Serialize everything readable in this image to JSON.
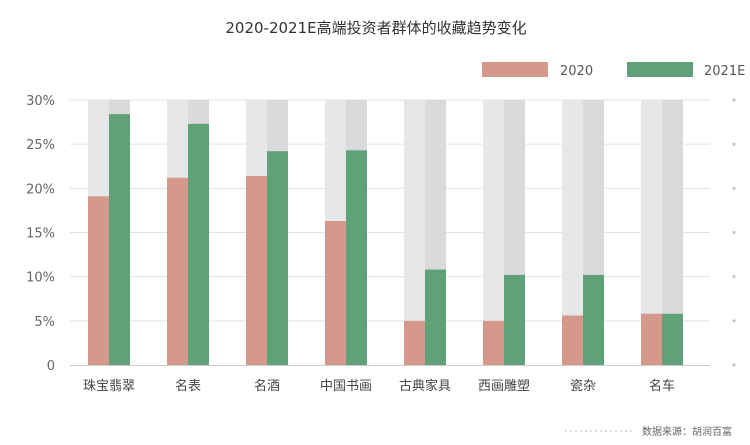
{
  "chart_data": {
    "type": "bar",
    "title": "2020-2021E高端投资者群体的收藏趋势变化",
    "categories": [
      "珠宝翡翠",
      "名表",
      "名酒",
      "中国书画",
      "古典家具",
      "西画雕塑",
      "瓷杂",
      "名车"
    ],
    "series": [
      {
        "name": "2020",
        "color": "#d4998a",
        "values": [
          19.1,
          21.2,
          21.4,
          16.3,
          5.0,
          5.0,
          5.6,
          5.8
        ]
      },
      {
        "name": "2021E",
        "color": "#5fa277",
        "values": [
          28.4,
          27.3,
          24.2,
          24.3,
          10.8,
          10.2,
          10.2,
          5.8
        ]
      }
    ],
    "ylim": [
      0,
      30
    ],
    "yticks": [
      "0",
      "5%",
      "10%",
      "15%",
      "20%",
      "25%",
      "30%"
    ],
    "ytick_values": [
      0,
      5,
      10,
      15,
      20,
      25,
      30
    ],
    "grid": true,
    "legend_position": "top-right",
    "background_bar_colors": [
      "#e6e7e9",
      "#d9dadc"
    ]
  },
  "source_label": "数据来源：胡润百富"
}
